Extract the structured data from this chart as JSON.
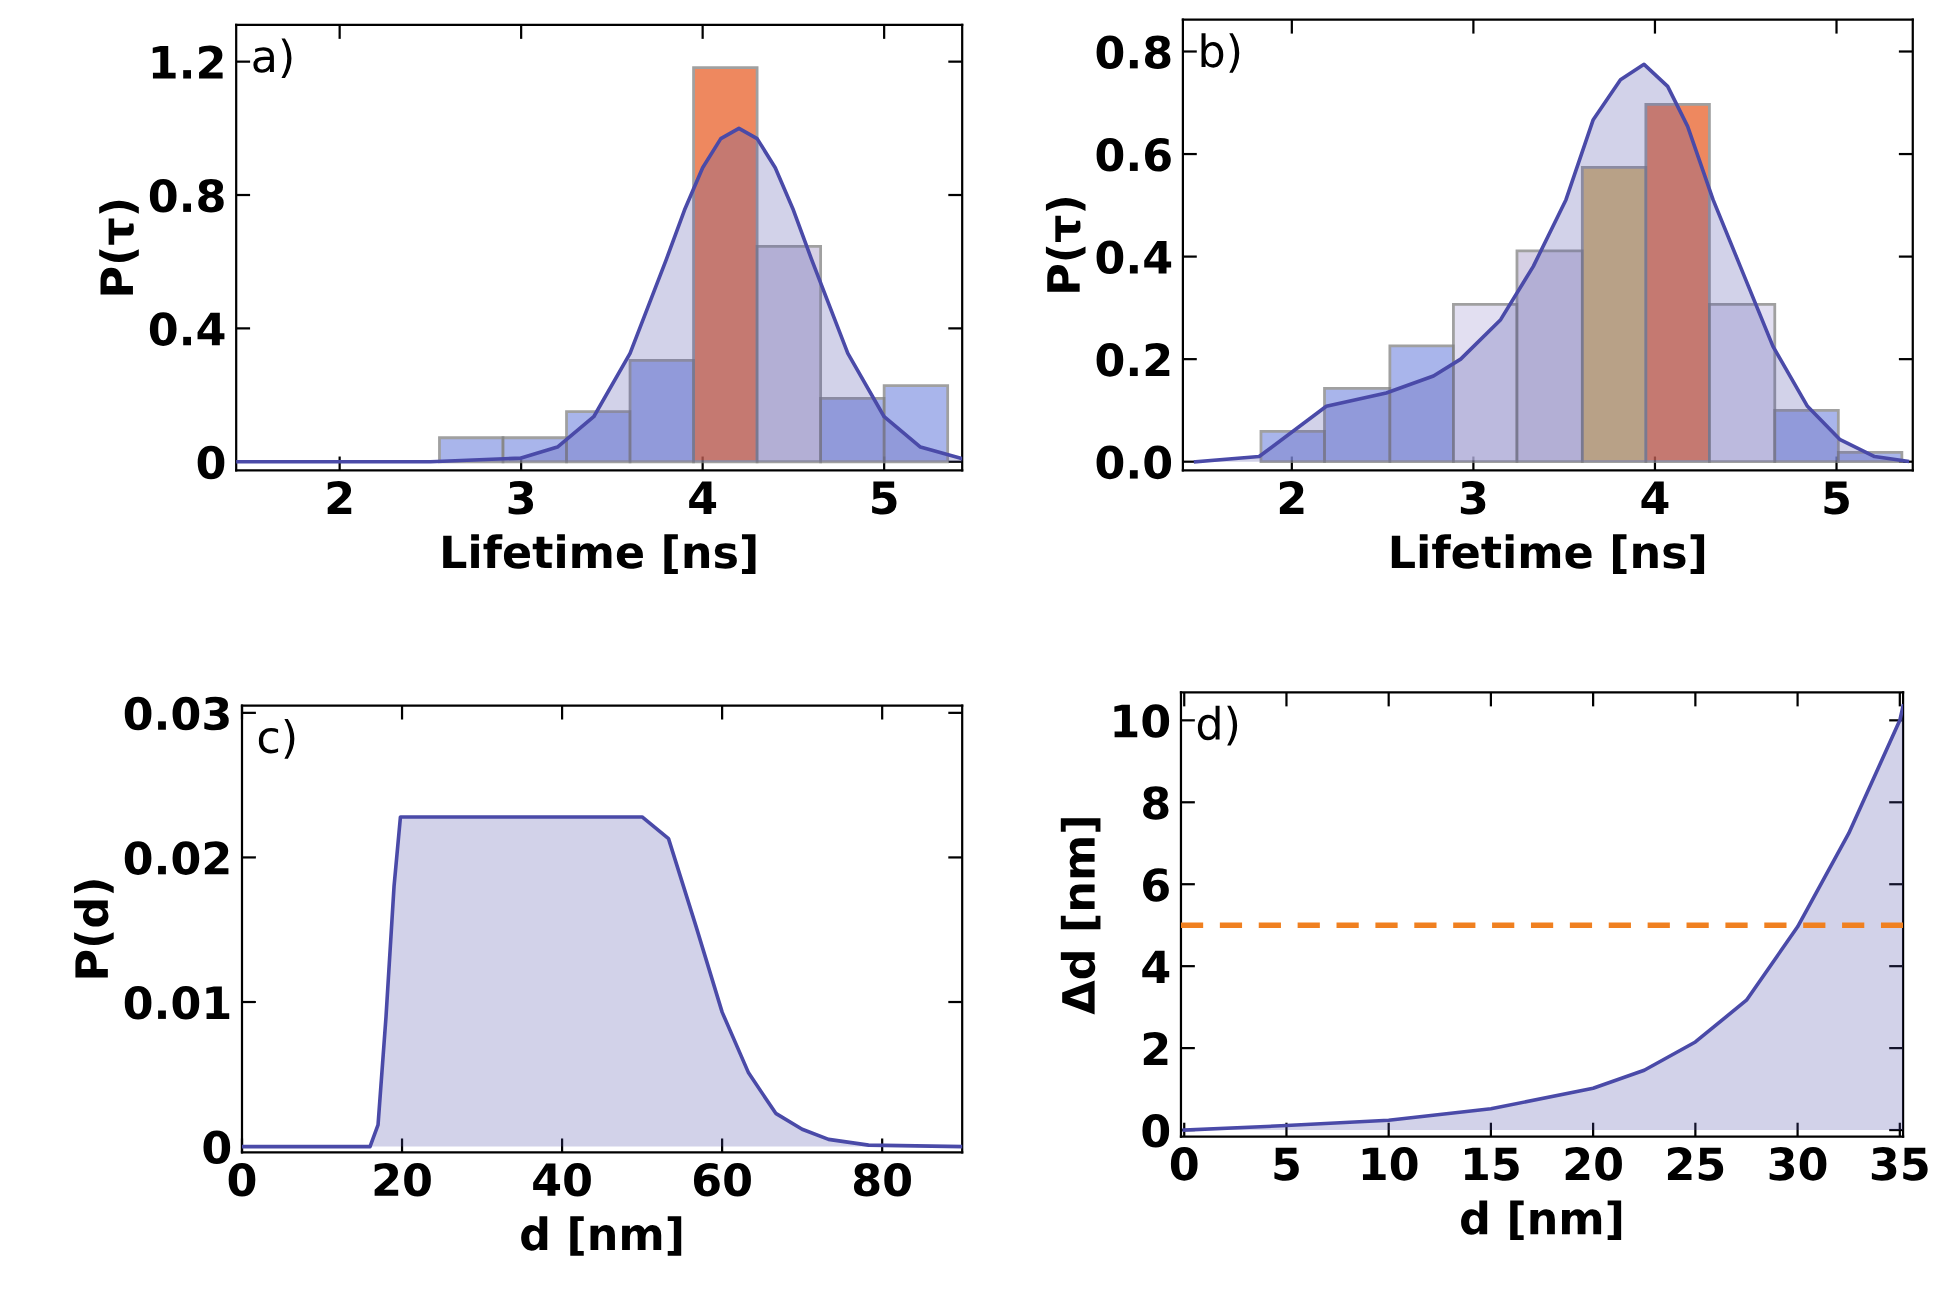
{
  "chart_data": [
    {
      "type": "histogram",
      "xlabel": "Lifetime [ns]",
      "ylabel": "P(τ)",
      "annotations": [
        "a)"
      ],
      "xlim": [
        1.43,
        5.43
      ],
      "ylim": [
        -0.026,
        1.31
      ],
      "xticks": [
        2,
        3,
        4,
        5
      ],
      "yticks": [
        0,
        0.4,
        0.8,
        1.2
      ],
      "grid": false,
      "series": [
        {
          "type": "histogram",
          "bins": [
            2.55,
            2.9,
            3.25,
            3.6,
            3.95,
            4.3,
            4.65,
            5.0,
            5.35
          ],
          "values": [
            0.072,
            0.072,
            0.15,
            0.304,
            1.182,
            0.646,
            0.19,
            0.228
          ],
          "colors": [
            "#8c9ce4",
            "#8c9ce4",
            "#8c9ce4",
            "#8c9ce4",
            "#e8602a",
            "#c8c0dc",
            "#8c9ce4",
            "#8c9ce4"
          ]
        },
        {
          "type": "area",
          "color": "#4a4aa8",
          "x": [
            1.43,
            2.5,
            3.0,
            3.2,
            3.4,
            3.6,
            3.8,
            3.9,
            4.0,
            4.1,
            4.2,
            4.3,
            4.4,
            4.5,
            4.6,
            4.8,
            5.0,
            5.2,
            5.43
          ],
          "values": [
            0,
            0,
            0.011,
            0.044,
            0.135,
            0.325,
            0.607,
            0.755,
            0.882,
            0.969,
            1.0,
            0.969,
            0.882,
            0.755,
            0.607,
            0.325,
            0.135,
            0.044,
            0.009
          ]
        }
      ]
    },
    {
      "type": "histogram",
      "xlabel": "Lifetime [ns]",
      "ylabel": "P(τ)",
      "annotations": [
        "b)"
      ],
      "xlim": [
        1.4,
        5.42
      ],
      "ylim": [
        -0.017,
        0.862
      ],
      "xticks": [
        2,
        3,
        4,
        5
      ],
      "yticks": [
        {
          "value": 0,
          "label": "0.0"
        },
        {
          "value": 0.2,
          "label": "0.2"
        },
        {
          "value": 0.4,
          "label": "0.4"
        },
        {
          "value": 0.6,
          "label": "0.6"
        },
        {
          "value": 0.8,
          "label": "0.8"
        }
      ],
      "grid": false,
      "series": [
        {
          "type": "histogram",
          "bins": [
            1.83,
            2.18,
            2.54,
            2.89,
            3.24,
            3.6,
            3.95,
            4.3,
            4.66,
            5.01,
            5.36
          ],
          "values": [
            0.059,
            0.143,
            0.226,
            0.307,
            0.411,
            0.574,
            0.697,
            0.307,
            0.1,
            0.018
          ],
          "colors": [
            "#8c9ce4",
            "#8c9ce4",
            "#8c9ce4",
            "#d8d4ec",
            "#c8c0dc",
            "#d0a850",
            "#e8602a",
            "#d8d4ec",
            "#8c9ce4",
            "#8c9ce4"
          ]
        },
        {
          "type": "area",
          "color": "#4a4aa8",
          "x": [
            1.47,
            1.82,
            2.19,
            2.52,
            2.78,
            2.93,
            3.15,
            3.33,
            3.51,
            3.66,
            3.81,
            3.94,
            4.07,
            4.18,
            4.32,
            4.47,
            4.65,
            4.84,
            5.02,
            5.21,
            5.39
          ],
          "values": [
            0,
            0.01,
            0.108,
            0.134,
            0.167,
            0.2,
            0.277,
            0.381,
            0.511,
            0.667,
            0.745,
            0.775,
            0.732,
            0.654,
            0.511,
            0.381,
            0.225,
            0.108,
            0.043,
            0.01,
            0.001
          ]
        }
      ]
    },
    {
      "type": "area",
      "xlabel": "d [nm]",
      "ylabel": "P(d)",
      "annotations": [
        "c)"
      ],
      "xlim": [
        0,
        90
      ],
      "ylim": [
        -0.0004,
        0.0305
      ],
      "xticks": [
        0,
        20,
        40,
        60,
        80
      ],
      "yticks": [
        0,
        0.01,
        0.02,
        0.03
      ],
      "grid": false,
      "series": [
        {
          "color": "#4a4aa8",
          "x": [
            0,
            16,
            17,
            18,
            19,
            19.8,
            50,
            53.3,
            56.7,
            60,
            63.3,
            66.7,
            70,
            73.3,
            78.3,
            90
          ],
          "values": [
            0,
            0,
            0.0015,
            0.009,
            0.018,
            0.0228,
            0.0228,
            0.0213,
            0.0153,
            0.0093,
            0.0051,
            0.0023,
            0.0012,
            0.0005,
            0.0001,
            0
          ]
        }
      ]
    },
    {
      "type": "area",
      "xlabel": "d [nm]",
      "ylabel": "Δd [nm]",
      "annotations": [
        "d)"
      ],
      "xlim": [
        -0.16,
        35.16
      ],
      "ylim": [
        -0.16,
        10.68
      ],
      "xticks": [
        0,
        5,
        10,
        15,
        20,
        25,
        30,
        35
      ],
      "yticks": [
        0,
        2,
        4,
        6,
        8,
        10
      ],
      "grid": false,
      "ref_lines": [
        {
          "axis": "y",
          "value": 5,
          "color": "#f08020",
          "line_style": "dashed"
        }
      ],
      "series": [
        {
          "color": "#4a4aa8",
          "x": [
            0,
            5,
            10,
            15,
            20,
            22.5,
            25,
            27.5,
            30,
            32.5,
            35,
            35.16
          ],
          "values": [
            0,
            0.11,
            0.24,
            0.52,
            1.02,
            1.46,
            2.15,
            3.17,
            4.96,
            7.24,
            10.0,
            10.35
          ]
        }
      ]
    }
  ]
}
